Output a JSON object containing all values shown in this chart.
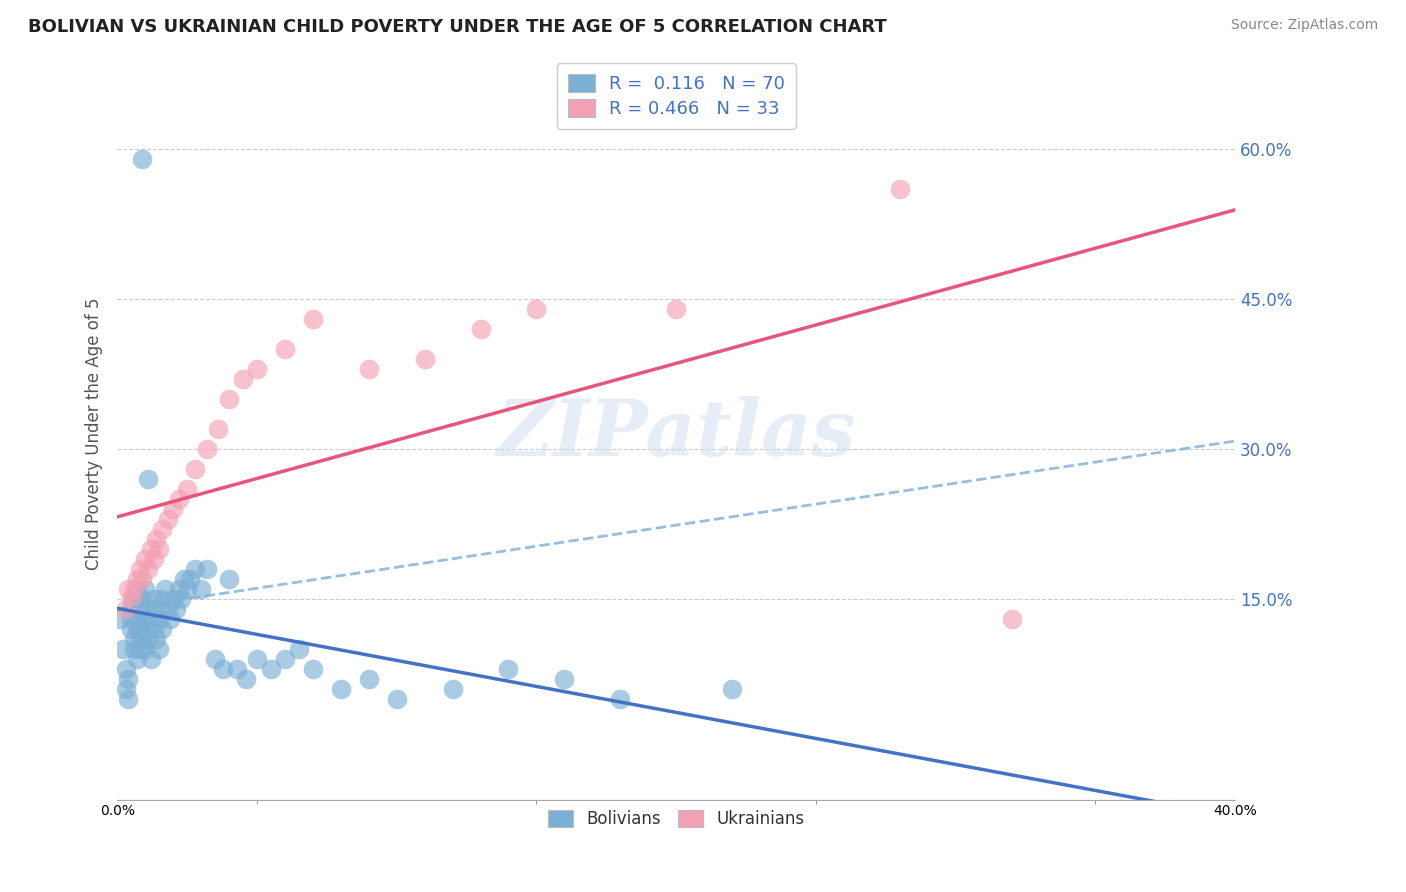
{
  "title": "BOLIVIAN VS UKRAINIAN CHILD POVERTY UNDER THE AGE OF 5 CORRELATION CHART",
  "source": "Source: ZipAtlas.com",
  "ylabel": "Child Poverty Under the Age of 5",
  "xlim": [
    0.0,
    0.4
  ],
  "ylim": [
    -0.05,
    0.68
  ],
  "xticks": [
    0.0,
    0.1,
    0.2,
    0.3,
    0.4
  ],
  "xtick_labels": [
    "0.0%",
    "",
    "",
    "",
    "40.0%"
  ],
  "ytick_positions": [
    0.15,
    0.3,
    0.45,
    0.6
  ],
  "ytick_labels": [
    "15.0%",
    "30.0%",
    "45.0%",
    "60.0%"
  ],
  "grid_color": "#cccccc",
  "background_color": "#ffffff",
  "blue_color": "#7bafd4",
  "pink_color": "#f4a0b5",
  "blue_line_color": "#4472c4",
  "blue_dash_color": "#7bafd4",
  "pink_line_color": "#e8557a",
  "blue_r": 0.116,
  "pink_r": 0.466,
  "bolivians_x": [
    0.001,
    0.002,
    0.003,
    0.003,
    0.004,
    0.004,
    0.005,
    0.005,
    0.005,
    0.006,
    0.006,
    0.006,
    0.007,
    0.007,
    0.007,
    0.007,
    0.008,
    0.008,
    0.008,
    0.009,
    0.009,
    0.009,
    0.01,
    0.01,
    0.01,
    0.011,
    0.011,
    0.012,
    0.012,
    0.013,
    0.013,
    0.014,
    0.014,
    0.015,
    0.015,
    0.016,
    0.016,
    0.017,
    0.018,
    0.019,
    0.02,
    0.021,
    0.022,
    0.023,
    0.024,
    0.025,
    0.026,
    0.028,
    0.03,
    0.032,
    0.035,
    0.038,
    0.04,
    0.043,
    0.046,
    0.05,
    0.055,
    0.06,
    0.065,
    0.07,
    0.08,
    0.09,
    0.1,
    0.12,
    0.14,
    0.16,
    0.18,
    0.22,
    0.011,
    0.009
  ],
  "bolivians_y": [
    0.13,
    0.1,
    0.06,
    0.08,
    0.05,
    0.07,
    0.12,
    0.13,
    0.14,
    0.1,
    0.11,
    0.15,
    0.09,
    0.12,
    0.13,
    0.16,
    0.1,
    0.12,
    0.14,
    0.11,
    0.12,
    0.15,
    0.1,
    0.13,
    0.16,
    0.11,
    0.14,
    0.09,
    0.13,
    0.12,
    0.15,
    0.11,
    0.14,
    0.1,
    0.13,
    0.12,
    0.15,
    0.16,
    0.14,
    0.13,
    0.15,
    0.14,
    0.16,
    0.15,
    0.17,
    0.16,
    0.17,
    0.18,
    0.16,
    0.18,
    0.09,
    0.08,
    0.17,
    0.08,
    0.07,
    0.09,
    0.08,
    0.09,
    0.1,
    0.08,
    0.06,
    0.07,
    0.05,
    0.06,
    0.08,
    0.07,
    0.05,
    0.06,
    0.27,
    0.59
  ],
  "ukrainians_x": [
    0.003,
    0.004,
    0.005,
    0.006,
    0.007,
    0.008,
    0.009,
    0.01,
    0.011,
    0.012,
    0.013,
    0.014,
    0.015,
    0.016,
    0.018,
    0.02,
    0.022,
    0.025,
    0.028,
    0.032,
    0.036,
    0.04,
    0.045,
    0.05,
    0.06,
    0.07,
    0.09,
    0.11,
    0.13,
    0.15,
    0.2,
    0.28,
    0.32
  ],
  "ukrainians_y": [
    0.14,
    0.16,
    0.15,
    0.16,
    0.17,
    0.18,
    0.17,
    0.19,
    0.18,
    0.2,
    0.19,
    0.21,
    0.2,
    0.22,
    0.23,
    0.24,
    0.25,
    0.26,
    0.28,
    0.3,
    0.32,
    0.35,
    0.37,
    0.38,
    0.4,
    0.43,
    0.38,
    0.39,
    0.42,
    0.44,
    0.44,
    0.56,
    0.13
  ]
}
